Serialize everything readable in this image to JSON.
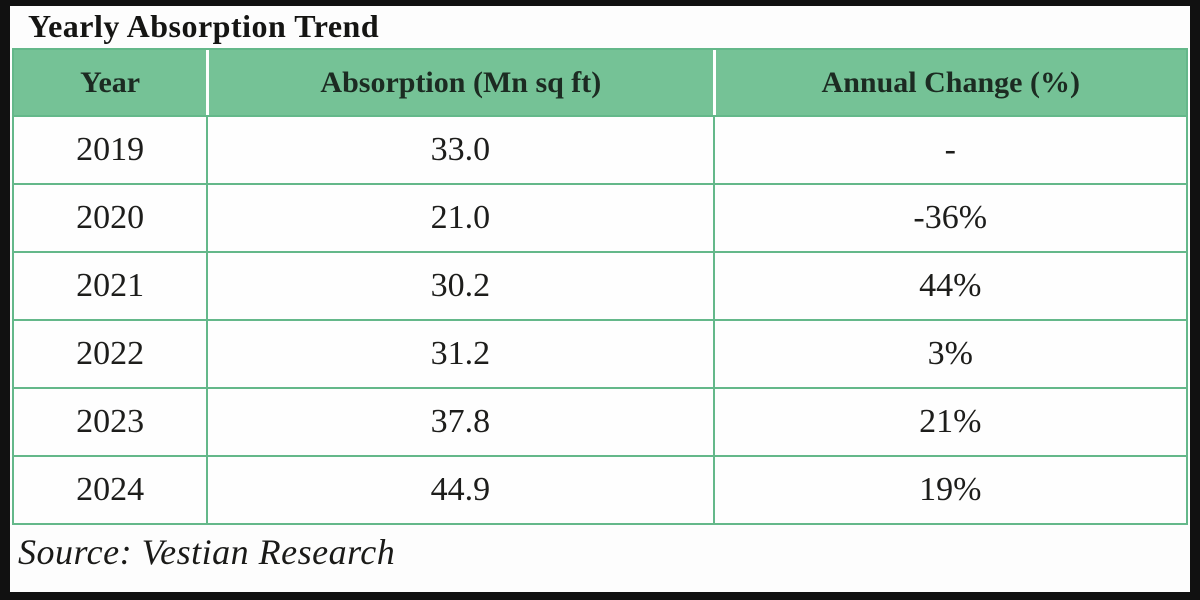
{
  "colors": {
    "header_bg": "#75c296",
    "border": "#64b88a",
    "frame": "#111111",
    "text": "#1d1d1b"
  },
  "chart_data": {
    "type": "table",
    "title": "Yearly Absorption Trend",
    "columns": [
      "Year",
      "Absorption (Mn sq ft)",
      "Annual Change (%)"
    ],
    "rows": [
      [
        "2019",
        "33.0",
        "-"
      ],
      [
        "2020",
        "21.0",
        "-36%"
      ],
      [
        "2021",
        "30.2",
        "44%"
      ],
      [
        "2022",
        "31.2",
        "3%"
      ],
      [
        "2023",
        "37.8",
        "21%"
      ],
      [
        "2024",
        "44.9",
        "19%"
      ]
    ],
    "source": "Source: Vestian Research",
    "units": "Mn sq ft",
    "absorption_values": [
      33.0,
      21.0,
      30.2,
      31.2,
      37.8,
      44.9
    ],
    "annual_change_pct": [
      null,
      -36,
      44,
      3,
      21,
      19
    ]
  }
}
